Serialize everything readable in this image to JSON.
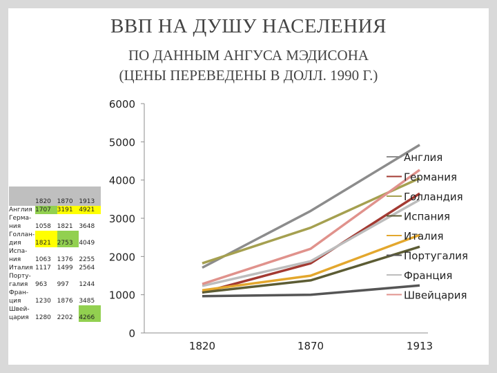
{
  "title": "ВВП НА ДУШУ НАСЕЛЕНИЯ",
  "subtitle_lines": [
    "ПО ДАННЫМ АНГУСА МЭДИСОНА",
    "(ЦЕНЫ ПЕРЕВЕДЕНЫ В ДОЛЛ. 1990 Г.)"
  ],
  "table": {
    "years": [
      "1820",
      "1870",
      "1913"
    ],
    "rows": [
      {
        "name": "Англия",
        "values": [
          "1707",
          "3191",
          "4921"
        ],
        "highlight": [
          "green",
          "yellow",
          "yellow"
        ]
      },
      {
        "name": "Герма-ния",
        "values": [
          "1058",
          "1821",
          "3648"
        ],
        "highlight": [
          "",
          "",
          ""
        ]
      },
      {
        "name": "Голлан-дия",
        "values": [
          "1821",
          "2753",
          "4049"
        ],
        "highlight": [
          "yellow",
          "green",
          ""
        ]
      },
      {
        "name": "Испа-ния",
        "values": [
          "1063",
          "1376",
          "2255"
        ],
        "highlight": [
          "",
          "",
          ""
        ]
      },
      {
        "name": "Италия",
        "values": [
          "1117",
          "1499",
          "2564"
        ],
        "highlight": [
          "",
          "",
          ""
        ]
      },
      {
        "name": "Порту-галия",
        "values": [
          "963",
          "997",
          "1244"
        ],
        "highlight": [
          "",
          "",
          ""
        ]
      },
      {
        "name": "Фран-ция",
        "values": [
          "1230",
          "1876",
          "3485"
        ],
        "highlight": [
          "",
          "",
          ""
        ]
      },
      {
        "name": "Швей-цария",
        "values": [
          "1280",
          "2202",
          "4266"
        ],
        "highlight": [
          "",
          "",
          "green"
        ]
      }
    ]
  },
  "chart_data": {
    "type": "line",
    "categories": [
      "1820",
      "1870",
      "1913"
    ],
    "ylim": [
      0,
      6000
    ],
    "yticks": [
      0,
      1000,
      2000,
      3000,
      4000,
      5000,
      6000
    ],
    "grid": false,
    "legend": "right",
    "series": [
      {
        "name": "Англия",
        "values": [
          1707,
          3191,
          4921
        ],
        "color": "#8c8c8c"
      },
      {
        "name": "Германия",
        "values": [
          1058,
          1821,
          3648
        ],
        "color": "#a33a32"
      },
      {
        "name": "Голландия",
        "values": [
          1821,
          2753,
          4049
        ],
        "color": "#a5a050"
      },
      {
        "name": "Испания",
        "values": [
          1063,
          1376,
          2255
        ],
        "color": "#5c5c34"
      },
      {
        "name": "Италия",
        "values": [
          1117,
          1499,
          2564
        ],
        "color": "#e3a72d"
      },
      {
        "name": "Португалия",
        "values": [
          963,
          997,
          1244
        ],
        "color": "#555555"
      },
      {
        "name": "Франция",
        "values": [
          1230,
          1876,
          3485
        ],
        "color": "#bdbdbd"
      },
      {
        "name": "Швейцария",
        "values": [
          1280,
          2202,
          4266
        ],
        "color": "#e0928c"
      }
    ]
  }
}
